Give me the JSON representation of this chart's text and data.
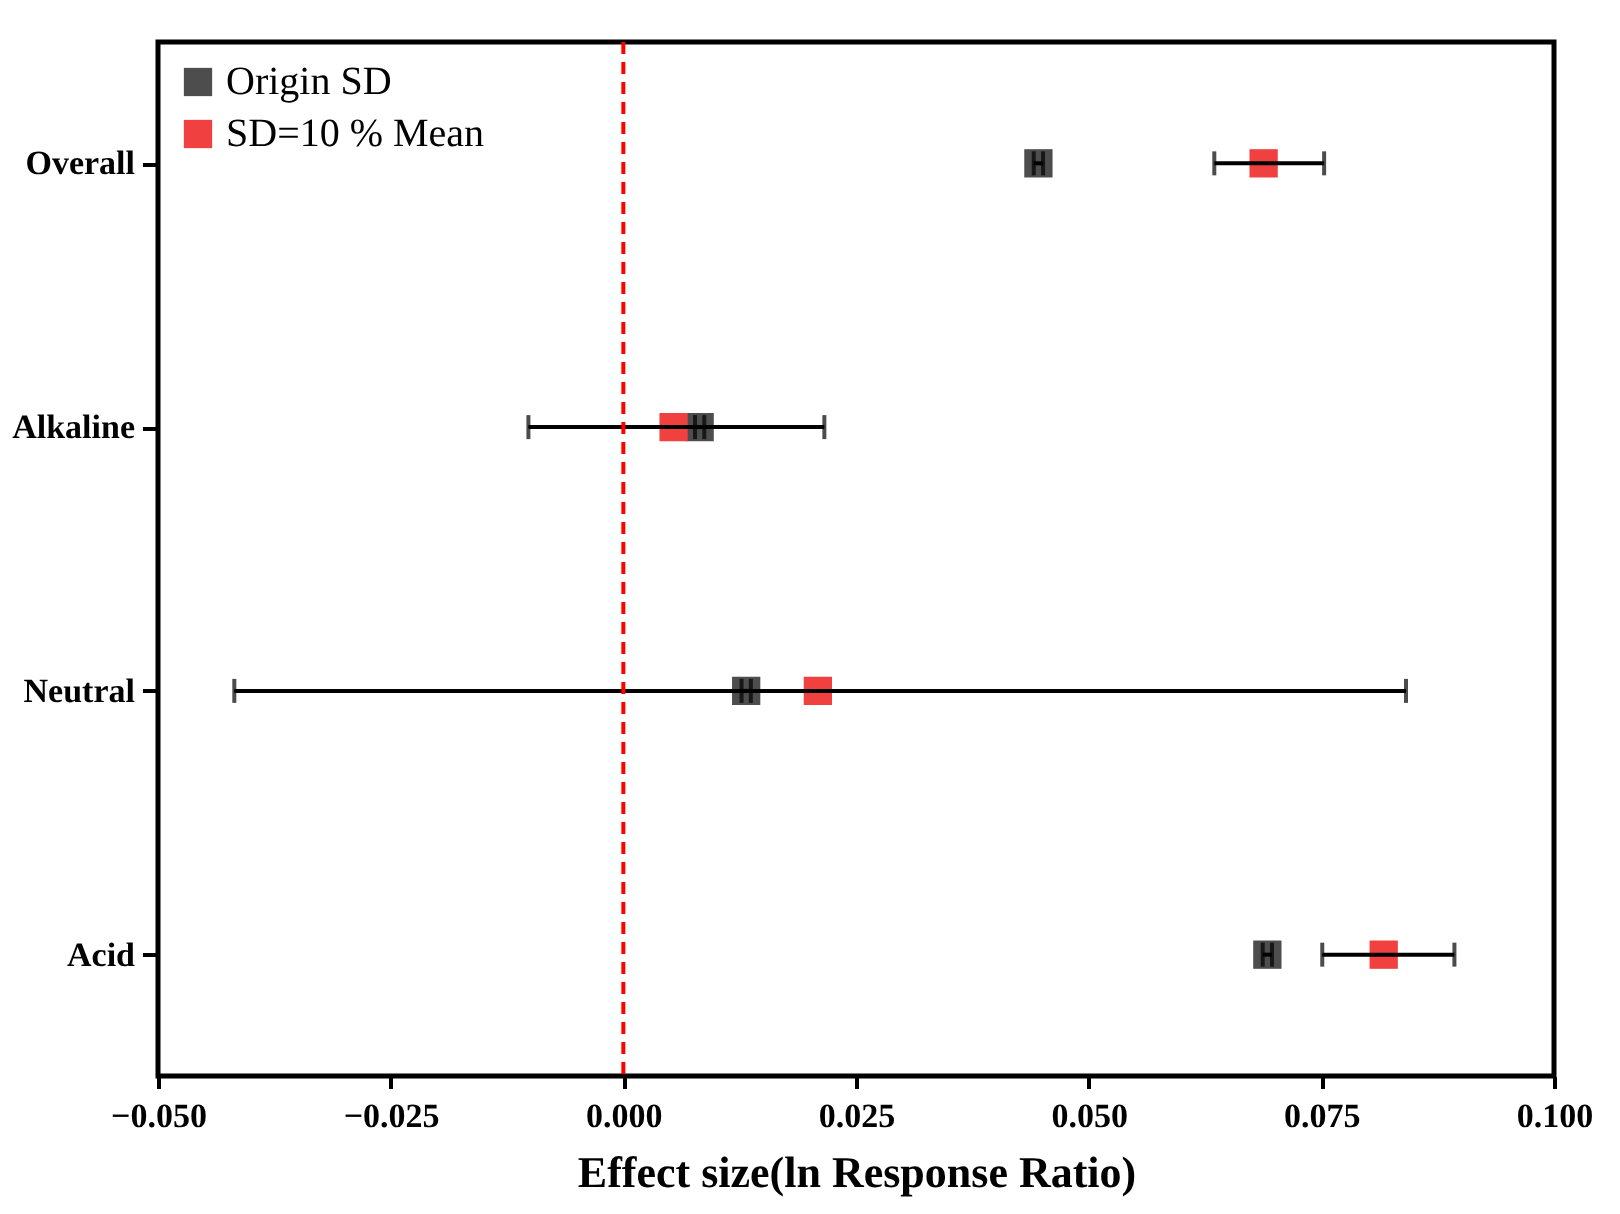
{
  "chart_data": {
    "type": "scatter",
    "orientation": "horizontal",
    "xlabel": "Effect size(ln Response Ratio)",
    "categories": [
      "Overall",
      "Alkaline",
      "Neutral",
      "Acid"
    ],
    "series": [
      {
        "name": "Origin SD",
        "color": "#4d4d4d",
        "values": [
          0.0446,
          0.0082,
          0.0132,
          0.0692
        ],
        "errors": [
          0.0005,
          0.0005,
          0.0005,
          0.0005
        ]
      },
      {
        "name": "SD=10 % Mean",
        "color": "#f04040",
        "values": [
          0.0688,
          0.0054,
          0.0209,
          0.0817
        ],
        "errors": [
          [
            0.0635,
            0.0753
          ],
          [
            -0.0102,
            0.0216
          ],
          [
            -0.0418,
            0.0841
          ],
          [
            0.0751,
            0.0893
          ]
        ]
      }
    ],
    "xlim": [
      -0.05,
      0.1
    ],
    "xticks": [
      {
        "value": -0.05,
        "label": "−0.050"
      },
      {
        "value": -0.025,
        "label": "−0.025"
      },
      {
        "value": 0,
        "label": "0.000"
      },
      {
        "value": 0.025,
        "label": "0.025"
      },
      {
        "value": 0.05,
        "label": "0.050"
      },
      {
        "value": 0.075,
        "label": "0.075"
      },
      {
        "value": 0.1,
        "label": "0.100"
      }
    ],
    "ref_lines": [
      {
        "axis": "x",
        "value": 0,
        "color": "#ff0000",
        "line_style": "dashed"
      }
    ],
    "marker": "square",
    "legend": "top left",
    "grid": false
  }
}
